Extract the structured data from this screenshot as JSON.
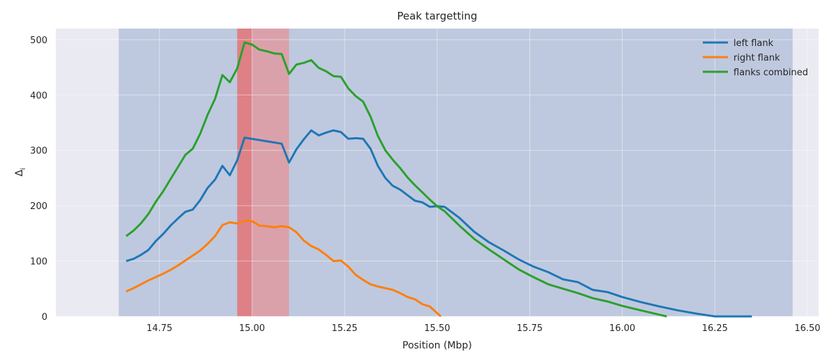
{
  "chart_data": {
    "type": "line",
    "title": "Peak targetting",
    "xlabel": "Position (Mbp)",
    "ylabel": "Δ",
    "ylabel_sub": "i",
    "xlim": [
      14.47,
      16.53
    ],
    "ylim": [
      0,
      520
    ],
    "x_ticks": [
      14.75,
      15.0,
      15.25,
      15.5,
      15.75,
      16.0,
      16.25,
      16.5
    ],
    "x_tick_labels": [
      "14.75",
      "15.00",
      "15.25",
      "15.50",
      "15.75",
      "16.00",
      "16.25",
      "16.50"
    ],
    "y_ticks": [
      0,
      100,
      200,
      300,
      400,
      500
    ],
    "y_tick_labels": [
      "0",
      "100",
      "200",
      "300",
      "400",
      "500"
    ],
    "grid": true,
    "legend_position": "top-right",
    "spans": [
      {
        "x0": 14.64,
        "x1": 16.46,
        "color": "#4c72b0",
        "opacity": 0.28
      },
      {
        "x0": 14.96,
        "x1": 15.1,
        "color": "#f08080",
        "opacity": 0.55
      },
      {
        "x0": 14.96,
        "x1": 15.0,
        "color": "#e05a5a",
        "opacity": 0.45
      }
    ],
    "series": [
      {
        "name": "left flank",
        "color": "#1f77b4",
        "x": [
          14.66,
          14.68,
          14.7,
          14.72,
          14.74,
          14.76,
          14.78,
          14.8,
          14.82,
          14.84,
          14.86,
          14.88,
          14.9,
          14.92,
          14.94,
          14.96,
          14.98,
          15.08,
          15.1,
          15.12,
          15.14,
          15.16,
          15.18,
          15.2,
          15.22,
          15.24,
          15.26,
          15.28,
          15.3,
          15.32,
          15.34,
          15.36,
          15.38,
          15.4,
          15.42,
          15.44,
          15.46,
          15.48,
          15.5,
          15.52,
          15.56,
          15.6,
          15.64,
          15.68,
          15.72,
          15.76,
          15.8,
          15.84,
          15.88,
          15.92,
          15.96,
          16.0,
          16.05,
          16.1,
          16.15,
          16.2,
          16.25,
          16.3,
          16.35
        ],
        "y": [
          100,
          104,
          111,
          120,
          136,
          149,
          164,
          177,
          189,
          193,
          210,
          232,
          247,
          272,
          255,
          282,
          323,
          312,
          278,
          302,
          320,
          336,
          327,
          332,
          336,
          333,
          321,
          322,
          321,
          303,
          272,
          250,
          236,
          229,
          219,
          209,
          206,
          198,
          199,
          198,
          178,
          153,
          134,
          119,
          103,
          90,
          80,
          67,
          62,
          48,
          44,
          35,
          26,
          18,
          11,
          5,
          0,
          0,
          0
        ]
      },
      {
        "name": "right flank",
        "color": "#ff7f0e",
        "x": [
          14.66,
          14.68,
          14.7,
          14.72,
          14.74,
          14.76,
          14.78,
          14.8,
          14.82,
          14.84,
          14.86,
          14.88,
          14.9,
          14.92,
          14.94,
          14.96,
          14.98,
          15.0,
          15.02,
          15.04,
          15.06,
          15.08,
          15.1,
          15.12,
          15.14,
          15.16,
          15.18,
          15.2,
          15.22,
          15.24,
          15.26,
          15.28,
          15.3,
          15.32,
          15.34,
          15.36,
          15.38,
          15.4,
          15.42,
          15.44,
          15.46,
          15.48,
          15.5,
          15.51
        ],
        "y": [
          45,
          51,
          58,
          65,
          71,
          77,
          84,
          92,
          101,
          110,
          119,
          131,
          145,
          165,
          170,
          168,
          173,
          172,
          164,
          163,
          161,
          163,
          161,
          152,
          137,
          127,
          121,
          111,
          100,
          101,
          90,
          75,
          66,
          58,
          54,
          51,
          48,
          42,
          35,
          31,
          22,
          18,
          6,
          0
        ]
      },
      {
        "name": "flanks combined",
        "color": "#2ca02c",
        "x": [
          14.66,
          14.68,
          14.7,
          14.72,
          14.74,
          14.76,
          14.78,
          14.8,
          14.82,
          14.84,
          14.86,
          14.88,
          14.9,
          14.92,
          14.94,
          14.96,
          14.98,
          15.0,
          15.02,
          15.04,
          15.06,
          15.08,
          15.1,
          15.12,
          15.14,
          15.16,
          15.18,
          15.2,
          15.22,
          15.24,
          15.26,
          15.28,
          15.3,
          15.32,
          15.34,
          15.36,
          15.38,
          15.4,
          15.42,
          15.44,
          15.46,
          15.48,
          15.5,
          15.52,
          15.56,
          15.6,
          15.64,
          15.68,
          15.72,
          15.76,
          15.8,
          15.84,
          15.88,
          15.92,
          15.96,
          16.0,
          16.05,
          16.1,
          16.12
        ],
        "y": [
          145,
          155,
          168,
          185,
          207,
          226,
          248,
          270,
          292,
          303,
          330,
          364,
          393,
          436,
          423,
          448,
          495,
          491,
          482,
          479,
          475,
          474,
          438,
          455,
          458,
          463,
          449,
          443,
          434,
          433,
          412,
          398,
          388,
          361,
          326,
          300,
          283,
          268,
          251,
          237,
          224,
          211,
          199,
          190,
          164,
          140,
          121,
          103,
          85,
          71,
          58,
          50,
          42,
          33,
          27,
          19,
          11,
          3,
          0
        ]
      }
    ]
  }
}
